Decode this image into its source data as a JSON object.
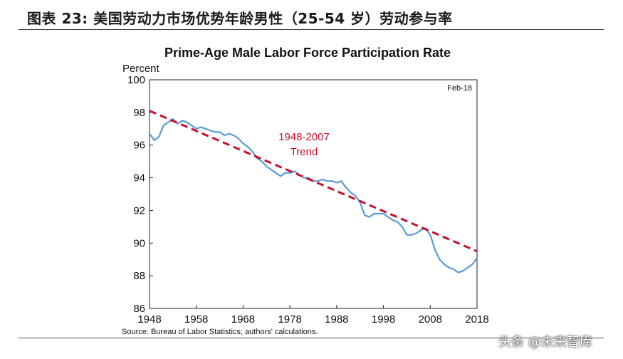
{
  "figure": {
    "caption": "图表 23:  美国劳动力市场优势年龄男性（25-54 岁）劳动参与率",
    "watermark": "头条 @未来智库"
  },
  "chart_data": {
    "type": "line",
    "title": "Prime-Age Male Labor Force Participation Rate",
    "ylabel": "Percent",
    "xlabel": "",
    "xlim": [
      1948,
      2018
    ],
    "ylim": [
      86,
      100
    ],
    "xticks": [
      "1948",
      "1958",
      "1968",
      "1978",
      "1988",
      "1998",
      "2008",
      "2018"
    ],
    "yticks": [
      "86",
      "88",
      "90",
      "92",
      "94",
      "96",
      "98",
      "100"
    ],
    "date_note": "Feb-18",
    "source": "Source: Bureau of Labor Statistics; authors' calculations.",
    "annotation": {
      "line1": "1948-2007",
      "line2": "Trend",
      "color": "#c8102e"
    },
    "series": [
      {
        "name": "Participation Rate",
        "color": "#5b9bd5",
        "x": [
          1948,
          1949,
          1950,
          1951,
          1952,
          1953,
          1954,
          1955,
          1956,
          1957,
          1958,
          1959,
          1960,
          1961,
          1962,
          1963,
          1964,
          1965,
          1966,
          1967,
          1968,
          1969,
          1970,
          1971,
          1972,
          1973,
          1974,
          1975,
          1976,
          1977,
          1978,
          1979,
          1980,
          1981,
          1982,
          1983,
          1984,
          1985,
          1986,
          1987,
          1988,
          1989,
          1990,
          1991,
          1992,
          1993,
          1994,
          1995,
          1996,
          1997,
          1998,
          1999,
          2000,
          2001,
          2002,
          2003,
          2004,
          2005,
          2006,
          2007,
          2008,
          2009,
          2010,
          2011,
          2012,
          2013,
          2014,
          2015,
          2016,
          2017,
          2018
        ],
        "values": [
          96.7,
          96.3,
          96.5,
          97.2,
          97.4,
          97.6,
          97.3,
          97.5,
          97.4,
          97.2,
          97.0,
          97.1,
          97.0,
          96.9,
          96.8,
          96.8,
          96.6,
          96.7,
          96.6,
          96.4,
          96.1,
          95.9,
          95.6,
          95.2,
          95.0,
          94.7,
          94.5,
          94.3,
          94.1,
          94.3,
          94.3,
          94.4,
          94.2,
          94.0,
          94.0,
          93.8,
          93.8,
          93.9,
          93.8,
          93.8,
          93.7,
          93.8,
          93.4,
          93.1,
          92.9,
          92.5,
          91.7,
          91.6,
          91.8,
          91.8,
          91.8,
          91.6,
          91.4,
          91.3,
          91.0,
          90.5,
          90.5,
          90.6,
          90.8,
          90.9,
          90.5,
          89.6,
          89.0,
          88.7,
          88.5,
          88.4,
          88.2,
          88.3,
          88.5,
          88.7,
          89.1
        ]
      },
      {
        "name": "1948-2007 Trend",
        "color": "#c8102e",
        "dashed": true,
        "x": [
          1948,
          2018
        ],
        "values": [
          98.1,
          89.5
        ]
      }
    ]
  }
}
